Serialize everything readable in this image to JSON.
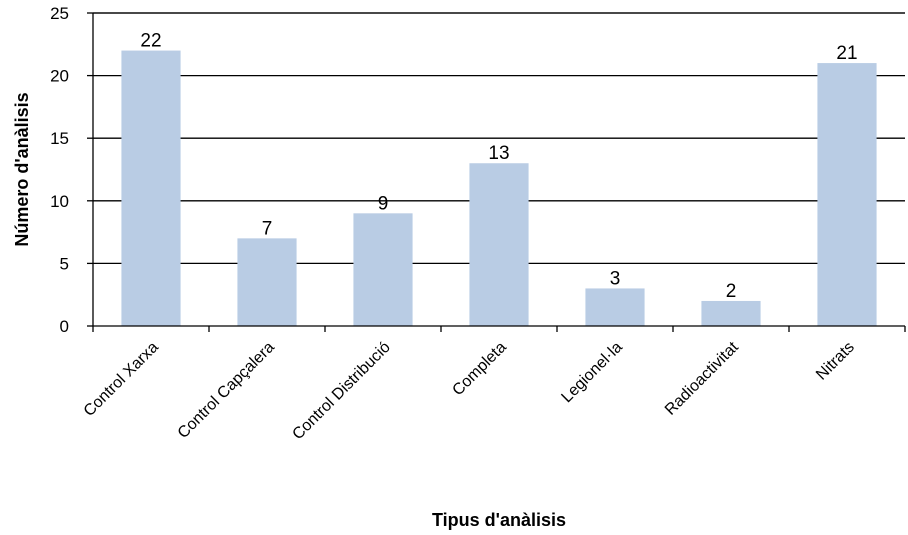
{
  "chart_data": {
    "type": "bar",
    "categories": [
      "Control Xarxa",
      "Control Capçalera",
      "Control Distribució",
      "Completa",
      "Legionel·la",
      "Radioactivitat",
      "Nitrats"
    ],
    "values": [
      22,
      7,
      9,
      13,
      3,
      2,
      21
    ],
    "xlabel": "Tipus d'anàlisis",
    "ylabel": "Número d'anàlisis",
    "ylim": [
      0,
      25
    ],
    "yticks": [
      0,
      5,
      10,
      15,
      20,
      25
    ],
    "grid": true,
    "legend": "none",
    "data_labels": true,
    "bar_color": "#b9cce4",
    "grid_color": "#000000"
  }
}
